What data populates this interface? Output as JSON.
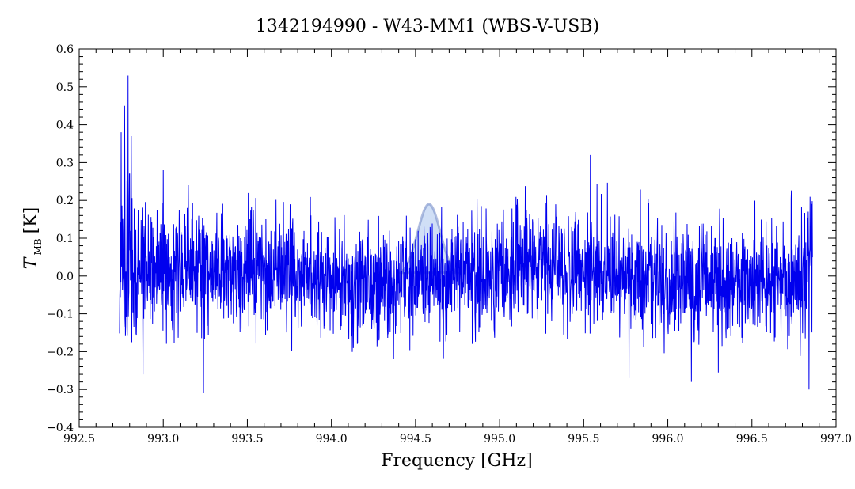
{
  "chart_data": {
    "type": "line",
    "title": "1342194990 - W43-MM1 (WBS-V-USB)",
    "xlabel": "Frequency [GHz]",
    "ylabel_main": "T",
    "ylabel_sub": "MB",
    "ylabel_unit": "[K]",
    "xlim": [
      992.5,
      997.0
    ],
    "ylim": [
      -0.4,
      0.6
    ],
    "x_ticks": [
      "992.5",
      "993.0",
      "993.5",
      "994.0",
      "994.5",
      "995.0",
      "995.5",
      "996.0",
      "996.5",
      "997.0"
    ],
    "y_ticks": [
      "−0.4",
      "−0.3",
      "−0.2",
      "−0.1",
      "0.0",
      "0.1",
      "0.2",
      "0.3",
      "0.4",
      "0.5",
      "0.6"
    ],
    "grid": false,
    "colors": {
      "series": "#0000ee",
      "feature": "#6f86c4"
    },
    "series": [
      {
        "x_range": [
          992.74,
          996.86
        ],
        "noise_rms": 0.075,
        "highlights": [
          {
            "x": 992.79,
            "y": 0.53
          },
          {
            "x": 992.77,
            "y": 0.45
          },
          {
            "x": 992.75,
            "y": 0.38
          },
          {
            "x": 992.81,
            "y": 0.37
          },
          {
            "x": 993.0,
            "y": 0.28
          },
          {
            "x": 995.54,
            "y": 0.32
          },
          {
            "x": 993.24,
            "y": -0.31
          },
          {
            "x": 992.88,
            "y": -0.26
          },
          {
            "x": 996.84,
            "y": -0.3
          },
          {
            "x": 996.14,
            "y": -0.28
          },
          {
            "x": 995.77,
            "y": -0.27
          },
          {
            "x": 994.37,
            "y": -0.22
          }
        ]
      }
    ],
    "feature": {
      "center": 994.58,
      "peak": 0.19,
      "fwhm": 0.16
    }
  }
}
